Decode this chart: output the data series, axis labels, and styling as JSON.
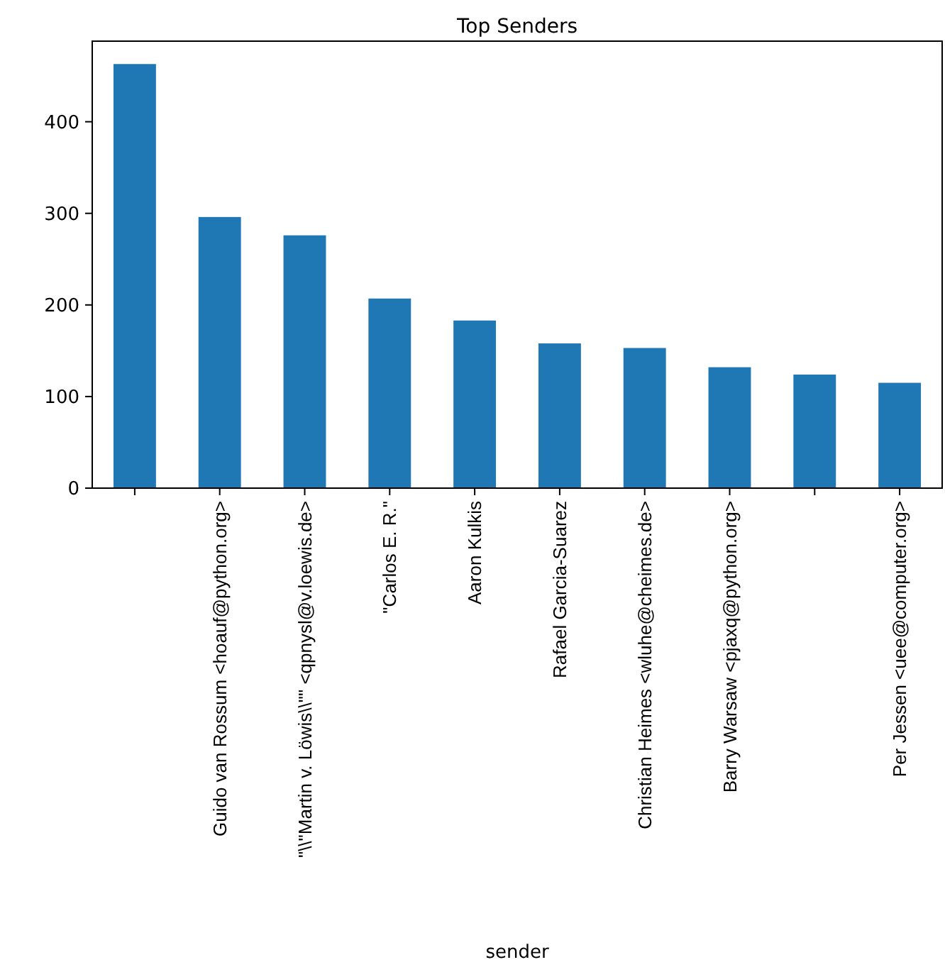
{
  "chart_data": {
    "type": "bar",
    "title": "Top Senders",
    "xlabel": "sender",
    "categories": [
      null,
      "Guido van Rossum <hoauf@python.org>",
      "\"\\\\\"Martin v. Löwis\\\\\"\" <qpnysl@v.loewis.de>",
      "\"Carlos E. R.\"",
      "Aaron Kulkis",
      "Rafael Garcia-Suarez",
      "Christian Heimes <wluhe@cheimes.de>",
      "Barry Warsaw <pjaxq@python.org>",
      null,
      "Per Jessen <uee@computer.org>"
    ],
    "values": [
      463,
      296,
      276,
      207,
      183,
      158,
      153,
      132,
      124,
      115
    ],
    "color": "#1f77b4",
    "ylim": [
      0,
      488
    ],
    "yticks": [
      0,
      100,
      200,
      300,
      400
    ],
    "grid": false
  }
}
